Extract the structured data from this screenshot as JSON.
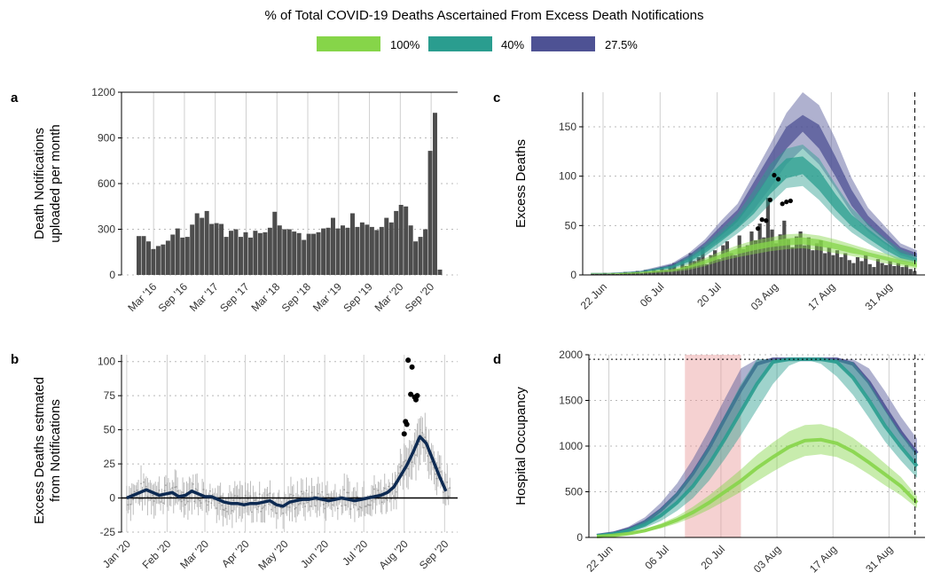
{
  "figure": {
    "title": "% of Total COVID-19 Deaths Ascertained From Excess Death Notifications",
    "legend": [
      {
        "label": "100%",
        "color": "#86d549"
      },
      {
        "label": "40%",
        "color": "#2a9d8f"
      },
      {
        "label": "27.5%",
        "color": "#4e5294"
      }
    ]
  },
  "chart_data": [
    {
      "panel": "a",
      "type": "bar",
      "ylabel": "Death Notifications\nuploaded per month",
      "ylim": [
        0,
        1200
      ],
      "yticks": [
        0,
        300,
        600,
        900,
        1200
      ],
      "xtick_labels": [
        "Mar '16",
        "Sep '16",
        "Mar '17",
        "Sep '17",
        "Mar '18",
        "Sep '18",
        "Mar '19",
        "Sep '19",
        "Mar '20",
        "Sep '20"
      ],
      "values": [
        255,
        255,
        220,
        170,
        190,
        200,
        225,
        265,
        305,
        245,
        250,
        330,
        405,
        375,
        420,
        335,
        340,
        335,
        250,
        290,
        300,
        250,
        280,
        245,
        290,
        275,
        280,
        310,
        415,
        325,
        300,
        300,
        285,
        275,
        230,
        270,
        270,
        280,
        305,
        310,
        375,
        305,
        325,
        310,
        405,
        315,
        345,
        330,
        315,
        295,
        315,
        375,
        345,
        420,
        460,
        450,
        325,
        220,
        250,
        300,
        815,
        1065,
        35
      ]
    },
    {
      "panel": "b",
      "type": "line",
      "ylabel": "Excess Deaths estmated\nfrom Notifications",
      "ylim": [
        -25,
        105
      ],
      "yticks": [
        -25,
        0,
        25,
        50,
        75,
        100
      ],
      "xtick_labels": [
        "Jan '20",
        "Feb '20",
        "Mar '20",
        "Apr '20",
        "May '20",
        "Jun '20",
        "Jul '20",
        "Aug '20",
        "Sep '20"
      ],
      "x": [
        0,
        5,
        10,
        15,
        20,
        25,
        30,
        35,
        40,
        45,
        50,
        55,
        60,
        65,
        70,
        75,
        80,
        85,
        90,
        95,
        100,
        105,
        110,
        115,
        120,
        125,
        130,
        135,
        140,
        145,
        150,
        155,
        160,
        165,
        170,
        175,
        180,
        185,
        190,
        195,
        200,
        205,
        210,
        215,
        220,
        225,
        230,
        235,
        240,
        245
      ],
      "smooth": [
        0,
        2,
        4,
        6,
        4,
        2,
        3,
        4,
        1,
        2,
        5,
        3,
        1,
        1,
        -1,
        -3,
        -4,
        -4,
        -5,
        -4,
        -4,
        -3,
        -2,
        -5,
        -6,
        -3,
        -2,
        -1,
        -1,
        0,
        -1,
        -2,
        -1,
        0,
        -1,
        -2,
        -1,
        0,
        1,
        2,
        4,
        8,
        16,
        24,
        34,
        45,
        40,
        28,
        16,
        5
      ],
      "points": [
        {
          "x": 216,
          "y": 101
        },
        {
          "x": 219,
          "y": 96
        },
        {
          "x": 218,
          "y": 76
        },
        {
          "x": 221,
          "y": 74
        },
        {
          "x": 223,
          "y": 75
        },
        {
          "x": 222,
          "y": 72
        },
        {
          "x": 214,
          "y": 56
        },
        {
          "x": 215,
          "y": 54
        },
        {
          "x": 213,
          "y": 47
        }
      ]
    },
    {
      "panel": "c",
      "type": "area",
      "ylabel": "Excess Deaths",
      "ylim": [
        0,
        185
      ],
      "yticks": [
        0,
        50,
        100,
        150
      ],
      "xtick_labels": [
        "22 Jun",
        "06 Jul",
        "20 Jul",
        "03 Aug",
        "17 Aug",
        "31 Aug"
      ],
      "x_days": [
        0,
        4,
        8,
        12,
        16,
        20,
        24,
        28,
        32,
        36,
        40,
        44,
        48,
        52,
        56,
        60,
        64,
        68,
        72,
        76,
        80
      ],
      "series": [
        {
          "name": "27.5%",
          "mean": [
            1,
            1,
            2,
            3,
            6,
            10,
            18,
            30,
            45,
            60,
            85,
            112,
            140,
            160,
            140,
            110,
            78,
            55,
            40,
            25,
            20
          ],
          "lo50": [
            1,
            1,
            2,
            3,
            5,
            9,
            16,
            27,
            40,
            54,
            76,
            102,
            128,
            145,
            128,
            100,
            70,
            50,
            36,
            22,
            18
          ],
          "hi50": [
            1,
            1,
            2,
            3,
            7,
            11,
            20,
            33,
            50,
            66,
            94,
            122,
            150,
            162,
            152,
            120,
            86,
            60,
            44,
            28,
            22
          ],
          "lo95": [
            1,
            1,
            2,
            2,
            5,
            8,
            14,
            24,
            36,
            48,
            66,
            88,
            112,
            128,
            112,
            88,
            62,
            44,
            32,
            20,
            15
          ],
          "hi95": [
            2,
            2,
            3,
            4,
            8,
            12,
            22,
            36,
            55,
            72,
            102,
            132,
            164,
            185,
            172,
            138,
            98,
            68,
            50,
            32,
            25
          ]
        },
        {
          "name": "40%",
          "mean": [
            1,
            1,
            2,
            3,
            5,
            8,
            15,
            25,
            38,
            52,
            70,
            92,
            108,
            110,
            96,
            74,
            55,
            42,
            30,
            20,
            15
          ],
          "lo50": [
            1,
            1,
            2,
            3,
            5,
            7,
            13,
            22,
            34,
            47,
            62,
            82,
            98,
            102,
            86,
            66,
            49,
            37,
            26,
            17,
            13
          ],
          "hi50": [
            1,
            1,
            2,
            3,
            6,
            9,
            17,
            28,
            42,
            57,
            78,
            102,
            118,
            120,
            106,
            82,
            61,
            47,
            34,
            23,
            17
          ],
          "lo95": [
            1,
            1,
            2,
            2,
            4,
            6,
            11,
            19,
            30,
            42,
            55,
            72,
            88,
            90,
            76,
            58,
            43,
            32,
            22,
            14,
            11
          ],
          "hi95": [
            2,
            2,
            3,
            4,
            7,
            10,
            19,
            31,
            46,
            62,
            86,
            112,
            128,
            132,
            118,
            92,
            68,
            52,
            38,
            26,
            19
          ]
        },
        {
          "name": "100%",
          "mean": [
            1,
            1,
            2,
            2,
            3,
            4,
            8,
            13,
            19,
            24,
            28,
            31,
            34,
            35,
            33,
            29,
            25,
            21,
            17,
            13,
            10
          ],
          "lo50": [
            1,
            1,
            1,
            2,
            3,
            4,
            7,
            11,
            17,
            21,
            25,
            28,
            30,
            31,
            29,
            26,
            22,
            19,
            15,
            11,
            8
          ],
          "hi50": [
            1,
            1,
            2,
            3,
            4,
            5,
            9,
            15,
            21,
            27,
            31,
            34,
            37,
            38,
            36,
            32,
            28,
            23,
            19,
            15,
            12
          ],
          "lo95": [
            1,
            1,
            1,
            1,
            2,
            3,
            5,
            9,
            14,
            18,
            21,
            24,
            26,
            27,
            25,
            22,
            19,
            16,
            12,
            9,
            6
          ],
          "hi95": [
            2,
            2,
            2,
            3,
            5,
            6,
            11,
            17,
            24,
            30,
            35,
            38,
            41,
            42,
            40,
            36,
            31,
            26,
            22,
            17,
            14
          ]
        }
      ],
      "bars": [
        1,
        1,
        1,
        2,
        1,
        2,
        1,
        2,
        3,
        2,
        3,
        4,
        2,
        5,
        3,
        6,
        4,
        8,
        5,
        10,
        12,
        6,
        15,
        9,
        22,
        14,
        18,
        28,
        11,
        20,
        25,
        16,
        30,
        34,
        22,
        20,
        40,
        26,
        30,
        44,
        35,
        52,
        38,
        78,
        46,
        32,
        41,
        55,
        36,
        28,
        39,
        44,
        30,
        38,
        25,
        32,
        35,
        22,
        28,
        20,
        25,
        18,
        22,
        15,
        12,
        18,
        14,
        20,
        11,
        8,
        16,
        12,
        10,
        14,
        9,
        12,
        8,
        10,
        6,
        4
      ],
      "points": [
        {
          "x": 45,
          "y": 101
        },
        {
          "x": 46,
          "y": 97
        },
        {
          "x": 44,
          "y": 76
        },
        {
          "x": 48,
          "y": 74
        },
        {
          "x": 49,
          "y": 75
        },
        {
          "x": 42,
          "y": 56
        },
        {
          "x": 43,
          "y": 55
        },
        {
          "x": 41,
          "y": 47
        },
        {
          "x": 47,
          "y": 72
        }
      ]
    },
    {
      "panel": "d",
      "type": "area",
      "ylabel": "Hospital Occupancy",
      "ylim": [
        0,
        2000
      ],
      "yticks": [
        0,
        500,
        1000,
        1500,
        2000
      ],
      "xtick_labels": [
        "22 Jun",
        "06 Jul",
        "20 Jul",
        "03 Aug",
        "17 Aug",
        "31 Aug"
      ],
      "capacity": 1950,
      "x_days": [
        0,
        4,
        8,
        12,
        16,
        20,
        24,
        28,
        32,
        36,
        40,
        44,
        48,
        52,
        56,
        60,
        64,
        68,
        72,
        76,
        80
      ],
      "series": [
        {
          "name": "27.5%",
          "mean": [
            20,
            45,
            90,
            170,
            300,
            470,
            700,
            980,
            1300,
            1620,
            1900,
            1950,
            1950,
            1950,
            1950,
            1950,
            1900,
            1700,
            1420,
            1150,
            920
          ],
          "lo95": [
            15,
            35,
            70,
            130,
            230,
            370,
            560,
            800,
            1080,
            1380,
            1680,
            1900,
            1950,
            1950,
            1950,
            1900,
            1750,
            1520,
            1240,
            1000,
            780
          ],
          "hi95": [
            28,
            60,
            120,
            220,
            380,
            590,
            860,
            1180,
            1520,
            1850,
            1950,
            1950,
            1950,
            1950,
            1950,
            1950,
            1950,
            1850,
            1600,
            1320,
            1080
          ]
        },
        {
          "name": "40%",
          "mean": [
            18,
            38,
            75,
            140,
            240,
            380,
            560,
            800,
            1080,
            1380,
            1680,
            1920,
            1950,
            1950,
            1950,
            1920,
            1750,
            1500,
            1220,
            990,
            780
          ],
          "lo95": [
            14,
            30,
            58,
            105,
            180,
            290,
            430,
            620,
            860,
            1120,
            1400,
            1680,
            1880,
            1950,
            1900,
            1760,
            1560,
            1310,
            1050,
            840,
            650
          ],
          "hi95": [
            24,
            50,
            100,
            185,
            315,
            495,
            720,
            1010,
            1340,
            1680,
            1950,
            1950,
            1950,
            1950,
            1950,
            1950,
            1920,
            1700,
            1400,
            1140,
            920
          ]
        },
        {
          "name": "100%",
          "mean": [
            10,
            22,
            42,
            75,
            125,
            190,
            275,
            380,
            500,
            620,
            760,
            880,
            990,
            1060,
            1070,
            1030,
            940,
            820,
            690,
            560,
            380
          ],
          "lo95": [
            8,
            18,
            34,
            60,
            100,
            152,
            220,
            305,
            400,
            500,
            615,
            720,
            820,
            890,
            910,
            880,
            800,
            690,
            570,
            460,
            320
          ],
          "hi95": [
            13,
            28,
            52,
            92,
            152,
            230,
            335,
            460,
            600,
            745,
            905,
            1040,
            1160,
            1230,
            1240,
            1190,
            1090,
            960,
            810,
            660,
            450
          ]
        }
      ],
      "shade_days": [
        22,
        36
      ]
    }
  ]
}
